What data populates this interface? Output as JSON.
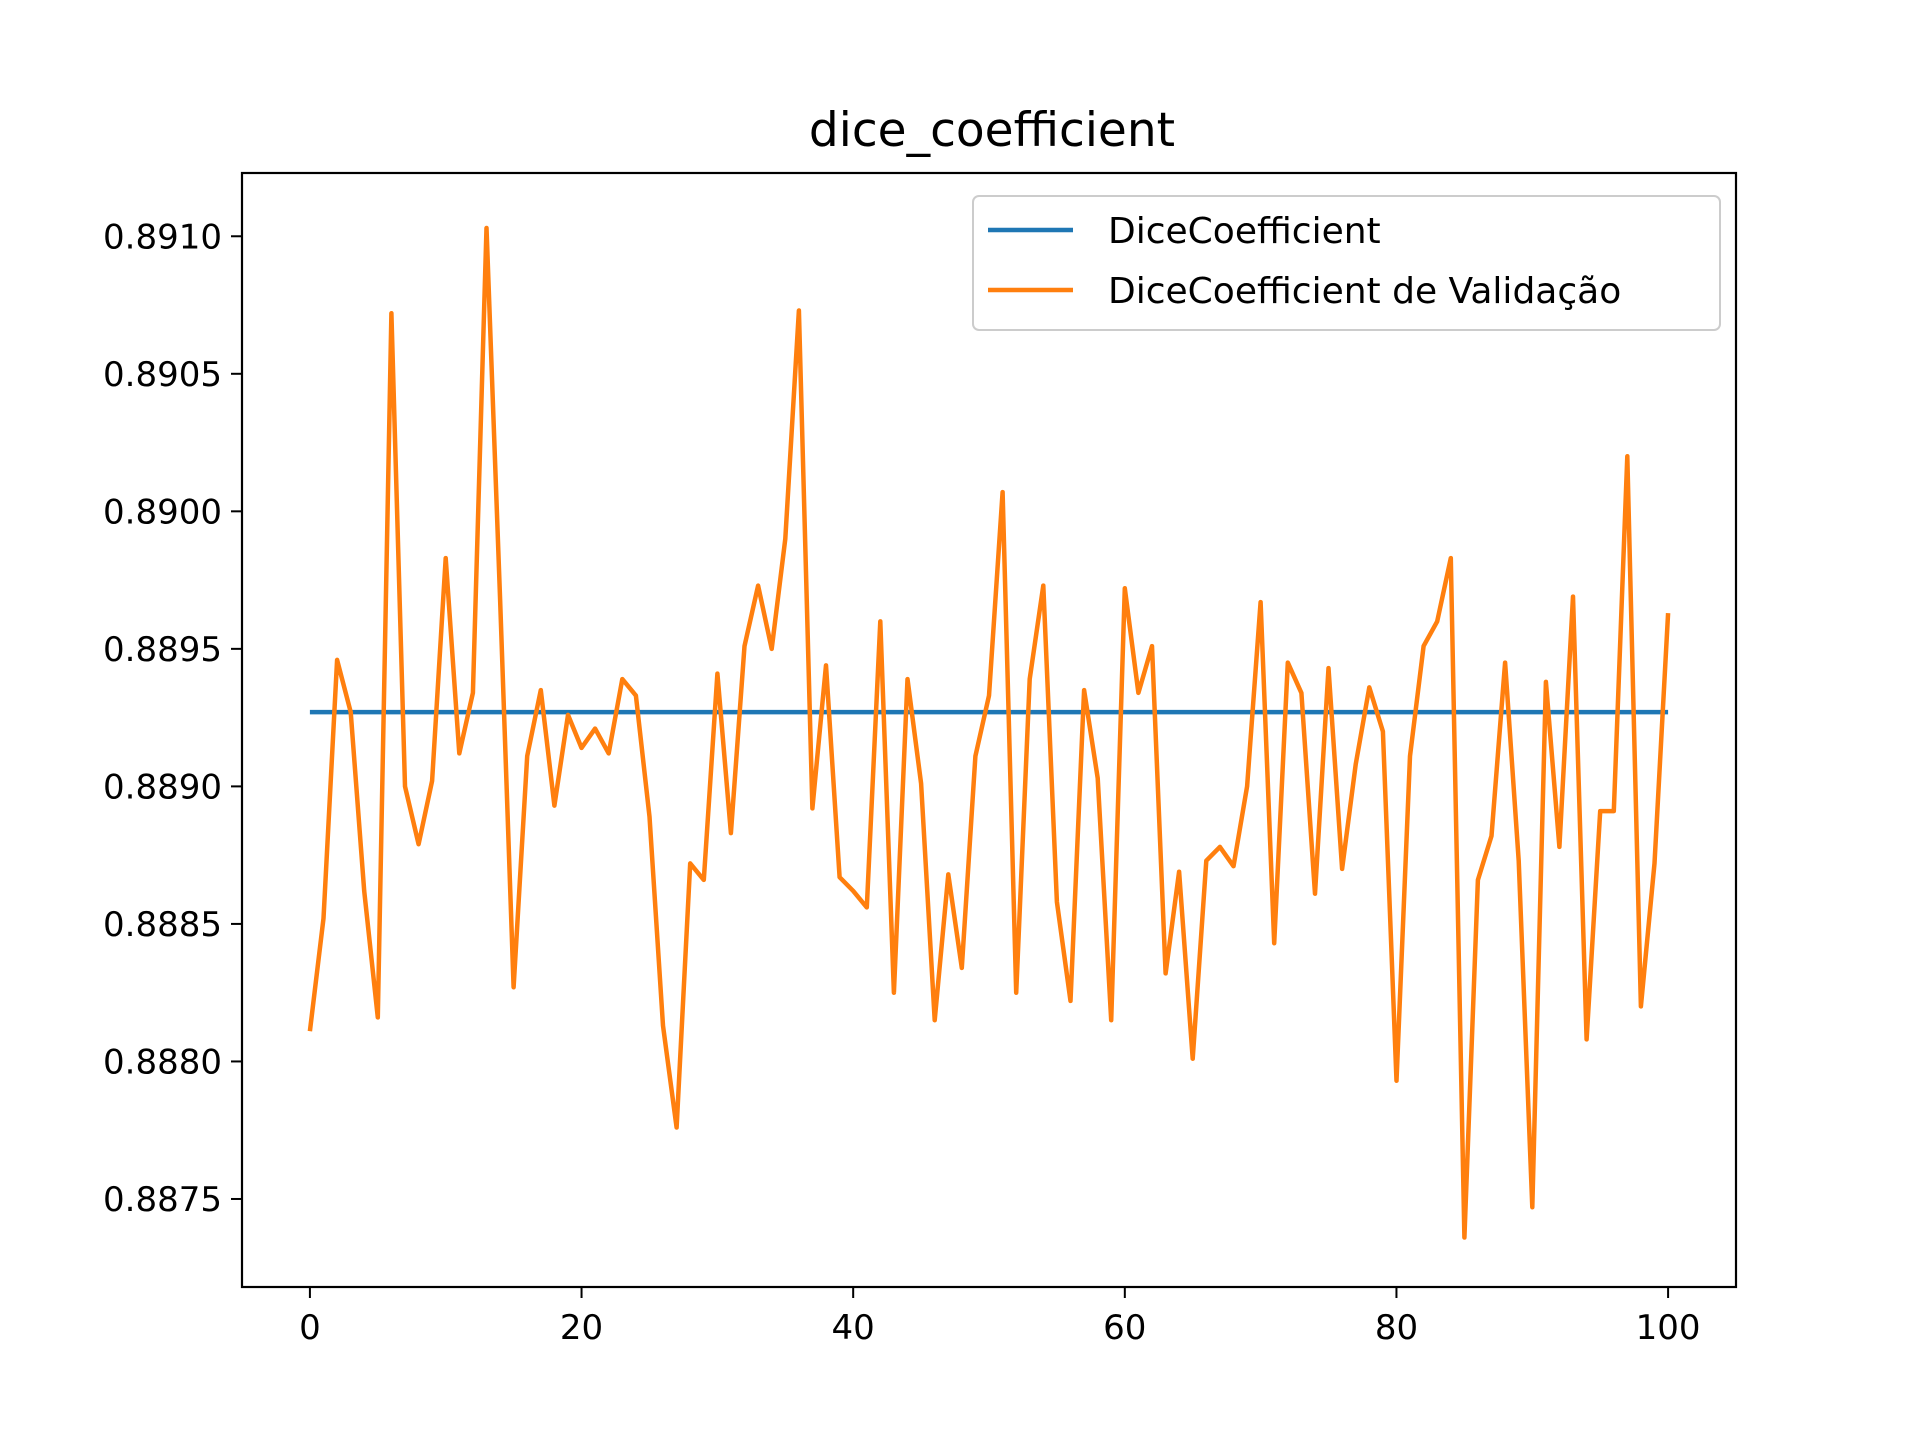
{
  "chart_data": {
    "type": "line",
    "title": "dice_coefficient",
    "xlabel": "",
    "ylabel": "",
    "xlim": [
      -5,
      105
    ],
    "ylim": [
      0.88718,
      0.89123
    ],
    "x_ticks": [
      0,
      20,
      40,
      60,
      80,
      100
    ],
    "x_tick_labels": [
      "0",
      "20",
      "40",
      "60",
      "80",
      "100"
    ],
    "y_ticks": [
      0.8875,
      0.888,
      0.8885,
      0.889,
      0.8895,
      0.89,
      0.8905,
      0.891
    ],
    "y_tick_labels": [
      "0.8875",
      "0.8880",
      "0.8885",
      "0.8890",
      "0.8895",
      "0.8900",
      "0.8905",
      "0.8910"
    ],
    "grid": false,
    "legend_position": "top-right",
    "x": [
      0,
      1,
      2,
      3,
      4,
      5,
      6,
      7,
      8,
      9,
      10,
      11,
      12,
      13,
      14,
      15,
      16,
      17,
      18,
      19,
      20,
      21,
      22,
      23,
      24,
      25,
      26,
      27,
      28,
      29,
      30,
      31,
      32,
      33,
      34,
      35,
      36,
      37,
      38,
      39,
      40,
      41,
      42,
      43,
      44,
      45,
      46,
      47,
      48,
      49,
      50,
      51,
      52,
      53,
      54,
      55,
      56,
      57,
      58,
      59,
      60,
      61,
      62,
      63,
      64,
      65,
      66,
      67,
      68,
      69,
      70,
      71,
      72,
      73,
      74,
      75,
      76,
      77,
      78,
      79,
      80,
      81,
      82,
      83,
      84,
      85,
      86,
      87,
      88,
      89,
      90,
      91,
      92,
      93,
      94,
      95,
      96,
      97,
      98,
      99,
      100
    ],
    "series": [
      {
        "name": "DiceCoefficient",
        "color": "#1f77b4",
        "values": [
          0.88927,
          0.88927,
          0.88927,
          0.88927,
          0.88927,
          0.88927,
          0.88927,
          0.88927,
          0.88927,
          0.88927,
          0.88927,
          0.88927,
          0.88927,
          0.88927,
          0.88927,
          0.88927,
          0.88927,
          0.88927,
          0.88927,
          0.88927,
          0.88927,
          0.88927,
          0.88927,
          0.88927,
          0.88927,
          0.88927,
          0.88927,
          0.88927,
          0.88927,
          0.88927,
          0.88927,
          0.88927,
          0.88927,
          0.88927,
          0.88927,
          0.88927,
          0.88927,
          0.88927,
          0.88927,
          0.88927,
          0.88927,
          0.88927,
          0.88927,
          0.88927,
          0.88927,
          0.88927,
          0.88927,
          0.88927,
          0.88927,
          0.88927,
          0.88927,
          0.88927,
          0.88927,
          0.88927,
          0.88927,
          0.88927,
          0.88927,
          0.88927,
          0.88927,
          0.88927,
          0.88927,
          0.88927,
          0.88927,
          0.88927,
          0.88927,
          0.88927,
          0.88927,
          0.88927,
          0.88927,
          0.88927,
          0.88927,
          0.88927,
          0.88927,
          0.88927,
          0.88927,
          0.88927,
          0.88927,
          0.88927,
          0.88927,
          0.88927,
          0.88927,
          0.88927,
          0.88927,
          0.88927,
          0.88927,
          0.88927,
          0.88927,
          0.88927,
          0.88927,
          0.88927,
          0.88927,
          0.88927,
          0.88927,
          0.88927,
          0.88927,
          0.88927,
          0.88927,
          0.88927,
          0.88927,
          0.88927,
          0.88927
        ]
      },
      {
        "name": "DiceCoefficient de Validação",
        "color": "#ff7f0e",
        "values": [
          0.88811,
          0.88852,
          0.88946,
          0.88927,
          0.88862,
          0.88816,
          0.89072,
          0.889,
          0.88879,
          0.88902,
          0.88983,
          0.88912,
          0.88934,
          0.89103,
          0.88968,
          0.88827,
          0.88911,
          0.88935,
          0.88893,
          0.88926,
          0.88914,
          0.88921,
          0.88912,
          0.88939,
          0.88933,
          0.88889,
          0.88813,
          0.88776,
          0.88872,
          0.88866,
          0.88941,
          0.88883,
          0.88951,
          0.88973,
          0.8895,
          0.8899,
          0.89073,
          0.88892,
          0.88944,
          0.88867,
          0.88862,
          0.88856,
          0.8896,
          0.88825,
          0.88939,
          0.88901,
          0.88815,
          0.88868,
          0.88834,
          0.88911,
          0.88933,
          0.89007,
          0.88825,
          0.88939,
          0.88973,
          0.88858,
          0.88822,
          0.88935,
          0.88903,
          0.88815,
          0.88972,
          0.88934,
          0.88951,
          0.88832,
          0.88869,
          0.88801,
          0.88873,
          0.88878,
          0.88871,
          0.889,
          0.88967,
          0.88843,
          0.88945,
          0.88934,
          0.88861,
          0.88943,
          0.8887,
          0.88908,
          0.88936,
          0.8892,
          0.88793,
          0.88911,
          0.88951,
          0.8896,
          0.88983,
          0.88736,
          0.88866,
          0.88882,
          0.88945,
          0.88873,
          0.88747,
          0.88938,
          0.88878,
          0.88969,
          0.88808,
          0.88891,
          0.88891,
          0.8902,
          0.8882,
          0.88872,
          0.88963
        ]
      }
    ]
  }
}
